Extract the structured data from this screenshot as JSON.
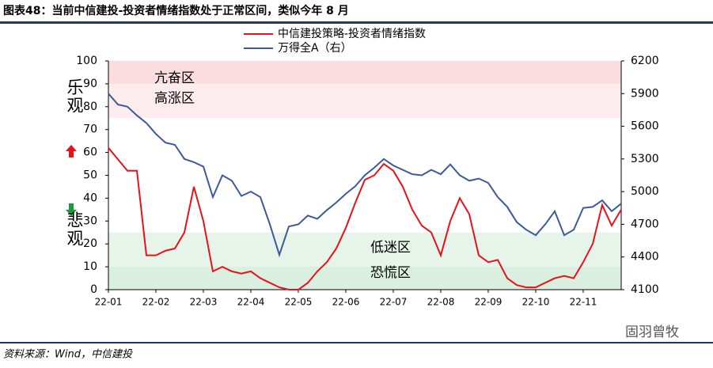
{
  "header": {
    "title": "图表48：当前中信建投-投资者情绪指数处于正常区间，类似今年 8 月"
  },
  "chart_data": {
    "type": "line",
    "categories": [
      "22-01",
      null,
      null,
      null,
      null,
      "22-02",
      null,
      null,
      null,
      null,
      "22-03",
      null,
      null,
      null,
      null,
      "22-04",
      null,
      null,
      null,
      null,
      "22-05",
      null,
      null,
      null,
      null,
      "22-06",
      null,
      null,
      null,
      null,
      "22-07",
      null,
      null,
      null,
      null,
      "22-08",
      null,
      null,
      null,
      null,
      "22-09",
      null,
      null,
      null,
      null,
      "22-10",
      null,
      null,
      null,
      null,
      "22-11",
      null,
      null,
      null,
      null
    ],
    "series": [
      {
        "name": "中信建投策略-投资者情绪指数",
        "color": "#e8111a",
        "values": [
          62,
          57,
          52,
          52,
          15,
          15,
          17,
          18,
          25,
          45,
          30,
          8,
          10,
          8,
          7,
          8,
          5,
          3,
          1,
          0,
          0,
          3,
          8,
          12,
          18,
          27,
          38,
          48,
          50,
          55,
          52,
          45,
          35,
          28,
          25,
          15,
          30,
          40,
          33,
          15,
          12,
          13,
          5,
          2,
          1,
          1,
          3,
          5,
          6,
          5,
          12,
          20,
          37,
          28,
          35
        ]
      },
      {
        "name": "万得全A（右）",
        "color": "#3b5a9a",
        "axis": "y2",
        "values": [
          5900,
          5800,
          5780,
          5700,
          5630,
          5530,
          5450,
          5430,
          5300,
          5270,
          5230,
          4950,
          5150,
          5100,
          4960,
          5000,
          4950,
          4700,
          4420,
          4680,
          4700,
          4780,
          4750,
          4830,
          4900,
          4980,
          5050,
          5150,
          5220,
          5300,
          5240,
          5200,
          5160,
          5150,
          5200,
          5160,
          5250,
          5150,
          5100,
          5120,
          5080,
          4950,
          4860,
          4720,
          4650,
          4600,
          4700,
          4820,
          4600,
          4650,
          4850,
          4860,
          4920,
          4820,
          4890
        ]
      }
    ],
    "ylim": [
      0,
      100
    ],
    "yticks": [
      0,
      10,
      20,
      30,
      40,
      50,
      60,
      70,
      80,
      90,
      100
    ],
    "y2lim": [
      4100,
      6200
    ],
    "y2ticks": [
      4100,
      4400,
      4700,
      5000,
      5300,
      5600,
      5900,
      6200
    ],
    "bands": [
      {
        "label": "亢奋区",
        "range": [
          90,
          100
        ],
        "color": "#fbdcdf"
      },
      {
        "label": "高涨区",
        "range": [
          75,
          90
        ],
        "color": "#fdeced"
      },
      {
        "label": "低迷区",
        "range": [
          10,
          25
        ],
        "color": "#e7f4ea"
      },
      {
        "label": "恐慌区",
        "range": [
          0,
          10
        ],
        "color": "#d9efdf"
      }
    ],
    "side_labels": [
      "乐观",
      "悲观"
    ],
    "legend": "top"
  },
  "footer": {
    "source": "资料来源：Wind，中信建投",
    "watermark": "固羽曾牧"
  }
}
